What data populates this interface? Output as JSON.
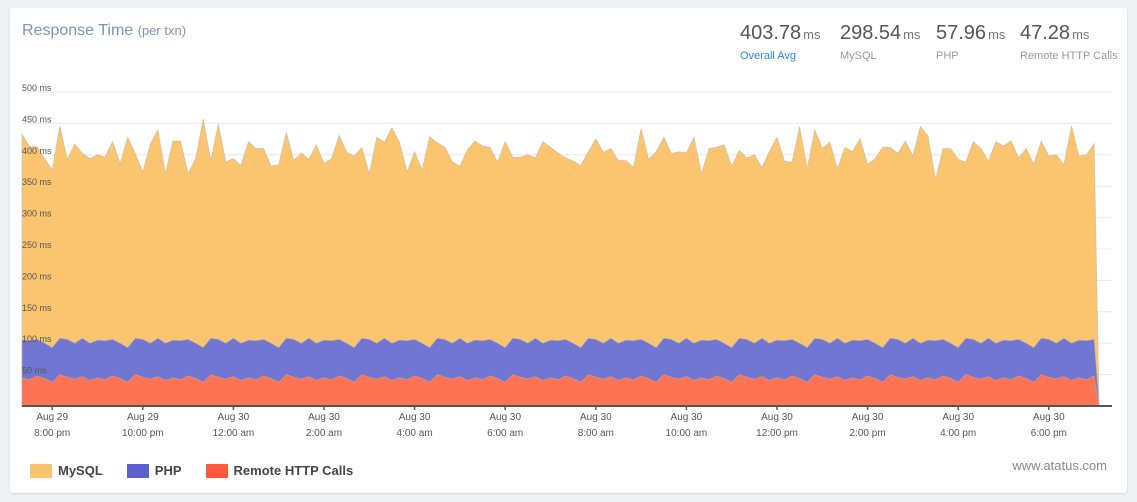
{
  "header": {
    "title": "Response Time",
    "subtitle": "(per txn)"
  },
  "stats": [
    {
      "value": "403.78",
      "unit": "ms",
      "label": "Overall Avg"
    },
    {
      "value": "298.54",
      "unit": "ms",
      "label": "MySQL"
    },
    {
      "value": "57.96",
      "unit": "ms",
      "label": "PHP"
    },
    {
      "value": "47.28",
      "unit": "ms",
      "label": "Remote HTTP Calls"
    }
  ],
  "brand": "www.atatus.com",
  "colors": {
    "mysql": "#f9c46e",
    "php": "#5b5fcf",
    "remote": "#ff5a3c",
    "accent": "#1e88e5"
  },
  "chart_data": {
    "type": "area",
    "stacked": true,
    "x_start": "Aug 29 7:20 pm",
    "x_step_minutes": 10,
    "ylim": [
      0,
      500
    ],
    "yticks": [
      "50 ms",
      "100 ms",
      "150 ms",
      "200 ms",
      "250 ms",
      "300 ms",
      "350 ms",
      "400 ms",
      "450 ms",
      "500 ms"
    ],
    "xticks": [
      {
        "date": "Aug 29",
        "time": "8:00 pm"
      },
      {
        "date": "Aug 29",
        "time": "10:00 pm"
      },
      {
        "date": "Aug 30",
        "time": "12:00 am"
      },
      {
        "date": "Aug 30",
        "time": "2:00 am"
      },
      {
        "date": "Aug 30",
        "time": "4:00 am"
      },
      {
        "date": "Aug 30",
        "time": "6:00 am"
      },
      {
        "date": "Aug 30",
        "time": "8:00 am"
      },
      {
        "date": "Aug 30",
        "time": "10:00 am"
      },
      {
        "date": "Aug 30",
        "time": "12:00 pm"
      },
      {
        "date": "Aug 30",
        "time": "2:00 pm"
      },
      {
        "date": "Aug 30",
        "time": "4:00 pm"
      },
      {
        "date": "Aug 30",
        "time": "6:00 pm"
      }
    ],
    "grid": true,
    "legend": "bottom-left",
    "series": [
      {
        "name": "Remote HTTP Calls",
        "values": [
          45,
          42,
          48,
          44,
          38,
          50,
          46,
          43,
          47,
          41,
          45,
          42,
          48,
          44,
          38,
          50,
          46,
          43,
          47,
          41,
          45,
          42,
          48,
          44,
          38,
          50,
          46,
          43,
          47,
          41,
          45,
          42,
          48,
          44,
          38,
          50,
          46,
          43,
          47,
          41,
          45,
          42,
          48,
          44,
          38,
          50,
          46,
          43,
          47,
          41,
          45,
          42,
          48,
          44,
          38,
          50,
          46,
          43,
          47,
          41,
          45,
          42,
          48,
          44,
          38,
          50,
          46,
          43,
          47,
          41,
          45,
          42,
          48,
          44,
          38,
          50,
          46,
          43,
          47,
          41,
          45,
          42,
          48,
          44,
          38,
          50,
          46,
          43,
          47,
          41,
          45,
          42,
          48,
          44,
          38,
          50,
          46,
          43,
          47,
          41,
          45,
          42,
          48,
          44,
          38,
          50,
          46,
          43,
          47,
          41,
          45,
          42,
          48,
          44,
          38,
          50,
          46,
          43,
          47,
          41,
          45,
          42,
          48,
          44,
          38,
          50,
          46,
          43,
          47,
          41,
          45,
          42,
          48,
          44,
          38,
          50,
          46,
          43,
          47,
          41,
          45,
          42,
          48
        ]
      },
      {
        "name": "PHP",
        "values": [
          60,
          62,
          58,
          56,
          55,
          58,
          60,
          57,
          61,
          59,
          60,
          62,
          58,
          56,
          55,
          58,
          60,
          57,
          61,
          59,
          60,
          62,
          58,
          56,
          55,
          58,
          60,
          57,
          61,
          59,
          60,
          62,
          58,
          56,
          55,
          58,
          60,
          57,
          61,
          59,
          60,
          62,
          58,
          56,
          55,
          58,
          60,
          57,
          61,
          59,
          60,
          62,
          58,
          56,
          55,
          58,
          60,
          57,
          61,
          59,
          60,
          62,
          58,
          56,
          55,
          58,
          60,
          57,
          61,
          59,
          60,
          62,
          58,
          56,
          55,
          58,
          60,
          57,
          61,
          59,
          60,
          62,
          58,
          56,
          55,
          58,
          60,
          57,
          61,
          59,
          60,
          62,
          58,
          56,
          55,
          58,
          60,
          57,
          61,
          59,
          60,
          62,
          58,
          56,
          55,
          58,
          60,
          57,
          61,
          59,
          60,
          62,
          58,
          56,
          55,
          58,
          60,
          57,
          61,
          59,
          60,
          62,
          58,
          56,
          55,
          58,
          60,
          57,
          61,
          59,
          60,
          62,
          58,
          56,
          55,
          58,
          60,
          57,
          61,
          59,
          60,
          62,
          58
        ]
      },
      {
        "name": "MySQL",
        "values": [
          328,
          309,
          307,
          294,
          283,
          338,
          287,
          317,
          294,
          294,
          295,
          292,
          315,
          286,
          335,
          294,
          267,
          317,
          332,
          270,
          317,
          318,
          264,
          294,
          364,
          283,
          343,
          289,
          286,
          283,
          316,
          306,
          304,
          282,
          291,
          328,
          285,
          303,
          285,
          316,
          281,
          290,
          325,
          304,
          305,
          304,
          264,
          328,
          312,
          343,
          315,
          269,
          299,
          276,
          336,
          311,
          306,
          289,
          274,
          308,
          317,
          310,
          306,
          288,
          328,
          288,
          290,
          300,
          287,
          321,
          307,
          299,
          289,
          290,
          290,
          297,
          319,
          304,
          302,
          291,
          286,
          276,
          336,
          293,
          312,
          320,
          296,
          305,
          295,
          328,
          265,
          306,
          306,
          316,
          289,
          299,
          289,
          300,
          272,
          305,
          323,
          286,
          282,
          345,
          285,
          332,
          304,
          320,
          270,
          312,
          300,
          322,
          279,
          294,
          319,
          304,
          296,
          322,
          290,
          345,
          325,
          257,
          304,
          310,
          300,
          280,
          315,
          310,
          282,
          321,
          309,
          318,
          289,
          310,
          292,
          314,
          292,
          300,
          276,
          346,
          293,
          296,
          312
        ]
      }
    ]
  }
}
